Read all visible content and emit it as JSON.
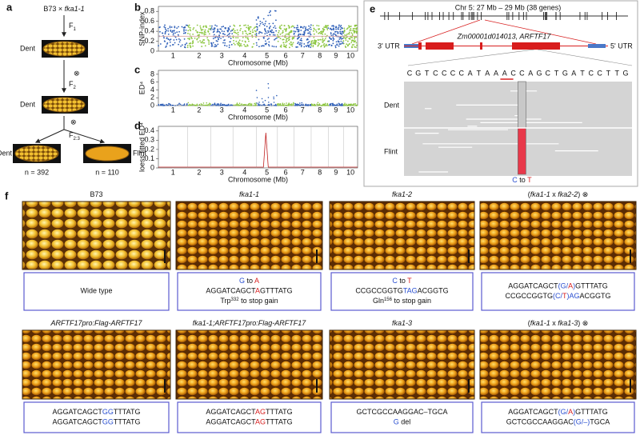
{
  "panel_labels": [
    "a",
    "b",
    "c",
    "d",
    "e",
    "f"
  ],
  "panel_a": {
    "cross_parent": "B73 ×",
    "cross_mutant": "fka1-1",
    "selfing": "⊗",
    "generations": [
      {
        "base": "F",
        "sub": "1"
      },
      {
        "base": "F",
        "sub": "2"
      },
      {
        "base": "F",
        "sub": "2:3"
      }
    ],
    "ear_labels": [
      "Dent",
      "Dent",
      "Dent",
      "Flint"
    ],
    "counts": [
      "n = 392",
      "n = 110"
    ]
  },
  "panel_b": {
    "ylabel": "SNP-index",
    "ylim": [
      0,
      0.9
    ],
    "yticks": [
      0,
      0.2,
      0.4,
      0.6,
      0.8
    ],
    "xlabel": "Chromosome (Mb)"
  },
  "panel_c": {
    "ylabel": "ED⁴",
    "ylim": [
      0,
      9
    ],
    "yticks": [
      0,
      2,
      4,
      6,
      8
    ],
    "xlabel": "Chromosome (Mb)"
  },
  "panel_d": {
    "ylabel": "loess fitted ED⁴",
    "ylim": [
      0,
      0.45
    ],
    "yticks": [
      0,
      0.1,
      0.2,
      0.3,
      0.4
    ],
    "xlabel": "Chromosome (Mb)"
  },
  "chromosomes": [
    "1",
    "2",
    "3",
    "4",
    "5",
    "6",
    "7",
    "8",
    "9",
    "10"
  ],
  "panel_e": {
    "region": "Chr 5: 27 Mb – 29 Mb (38 genes)",
    "utr3": "3' UTR",
    "utr5": "5' UTR",
    "gene": "Zm00001d014013, ARFTF17",
    "sequence": [
      "C",
      "G",
      "T",
      "C",
      "C",
      "C",
      "C",
      "A",
      "T",
      "A",
      "A",
      "A",
      "C",
      "C",
      "A",
      "G",
      "C",
      "T",
      "G",
      "A",
      "T",
      "C",
      "C",
      "T",
      "T",
      "G"
    ],
    "base_colors": {
      "A": "#2e9e3a",
      "C": "#2a4fd0",
      "G": "#e08a1a",
      "T": "#d82020"
    },
    "groups": [
      "Dent",
      "Flint"
    ],
    "mutation": [
      {
        "t": "C",
        "color": "#2a4fd0"
      },
      {
        "t": " to "
      },
      {
        "t": "T",
        "color": "#d82020"
      }
    ]
  },
  "panel_f": {
    "cells": [
      {
        "header": [
          {
            "t": "B73"
          }
        ],
        "lines": [
          [
            {
              "t": "Wide type"
            }
          ]
        ]
      },
      {
        "header": [
          {
            "t": "fka1-1",
            "italic": true
          }
        ],
        "lines": [
          [
            {
              "t": "G",
              "color": "#2a4fd0"
            },
            {
              "t": " to "
            },
            {
              "t": "A",
              "color": "#d82020"
            }
          ],
          [
            {
              "t": "AGGATCAGCT"
            },
            {
              "t": "A",
              "color": "#d82020"
            },
            {
              "t": "GTTTATG"
            }
          ],
          [
            {
              "t": "Trp"
            },
            {
              "t": "332",
              "sup": true
            },
            {
              "t": " to stop gain"
            }
          ]
        ]
      },
      {
        "header": [
          {
            "t": "fka1-2",
            "italic": true
          }
        ],
        "lines": [
          [
            {
              "t": "C",
              "color": "#2a4fd0"
            },
            {
              "t": " to "
            },
            {
              "t": "T",
              "color": "#d82020"
            }
          ],
          [
            {
              "t": "CCGCCGGTG"
            },
            {
              "t": "TAG",
              "color": "#2a4fd0"
            },
            {
              "t": "ACGGTG"
            }
          ],
          [
            {
              "t": "Gln"
            },
            {
              "t": "156",
              "sup": true
            },
            {
              "t": " to stop gain"
            }
          ]
        ]
      },
      {
        "header": [
          {
            "t": "("
          },
          {
            "t": "fka1-1",
            "italic": true
          },
          {
            "t": " x "
          },
          {
            "t": "fka2-2",
            "italic": true
          },
          {
            "t": ") ⊗"
          }
        ],
        "lines": [
          [
            {
              "t": "AGGATCAGCT"
            },
            {
              "t": "(G/",
              "color": "#2a4fd0"
            },
            {
              "t": "A",
              "color": "#d82020"
            },
            {
              "t": ")",
              "color": "#2a4fd0"
            },
            {
              "t": "GTTTATG"
            }
          ],
          [
            {
              "t": "CCGCCGGTG"
            },
            {
              "t": "(C/",
              "color": "#2a4fd0"
            },
            {
              "t": "T",
              "color": "#d82020"
            },
            {
              "t": ")AG",
              "color": "#2a4fd0"
            },
            {
              "t": "ACGGTG"
            }
          ]
        ]
      },
      {
        "header": [
          {
            "t": "ARFTF17pro:Flag-ARFTF17",
            "italic": true
          }
        ],
        "lines": [
          [
            {
              "t": "AGGATCAGCT"
            },
            {
              "t": "GG",
              "color": "#2a4fd0"
            },
            {
              "t": "TTTATG"
            }
          ],
          [
            {
              "t": "AGGATCAGCT"
            },
            {
              "t": "GG",
              "color": "#2a4fd0"
            },
            {
              "t": "TTTATG"
            }
          ]
        ]
      },
      {
        "header": [
          {
            "t": "fka1-1;ARFTF17pro:Flag-ARFTF17",
            "italic": true
          }
        ],
        "lines": [
          [
            {
              "t": "AGGATCAGCT"
            },
            {
              "t": "AG",
              "color": "#d82020"
            },
            {
              "t": "TTTATG"
            }
          ],
          [
            {
              "t": "AGGATCAGCT"
            },
            {
              "t": "AG",
              "color": "#d82020"
            },
            {
              "t": "TTTATG"
            }
          ]
        ]
      },
      {
        "header": [
          {
            "t": "fka1-3",
            "italic": true
          }
        ],
        "lines": [
          [
            {
              "t": "GCTCGCCAAGGAC–TGCA"
            }
          ],
          [
            {
              "t": "G",
              "color": "#2a4fd0"
            },
            {
              "t": " del"
            }
          ]
        ]
      },
      {
        "header": [
          {
            "t": "("
          },
          {
            "t": "fka1-1",
            "italic": true
          },
          {
            "t": " x "
          },
          {
            "t": "fka1-3",
            "italic": true
          },
          {
            "t": ") ⊗"
          }
        ],
        "lines": [
          [
            {
              "t": "AGGATCAGCT"
            },
            {
              "t": "(G/",
              "color": "#2a4fd0"
            },
            {
              "t": "A",
              "color": "#d82020"
            },
            {
              "t": ")",
              "color": "#2a4fd0"
            },
            {
              "t": "GTTTATG"
            }
          ],
          [
            {
              "t": "GCTCGCCAAGGAC"
            },
            {
              "t": "(G/–)",
              "color": "#2a4fd0"
            },
            {
              "t": "TGCA"
            }
          ]
        ]
      }
    ]
  }
}
